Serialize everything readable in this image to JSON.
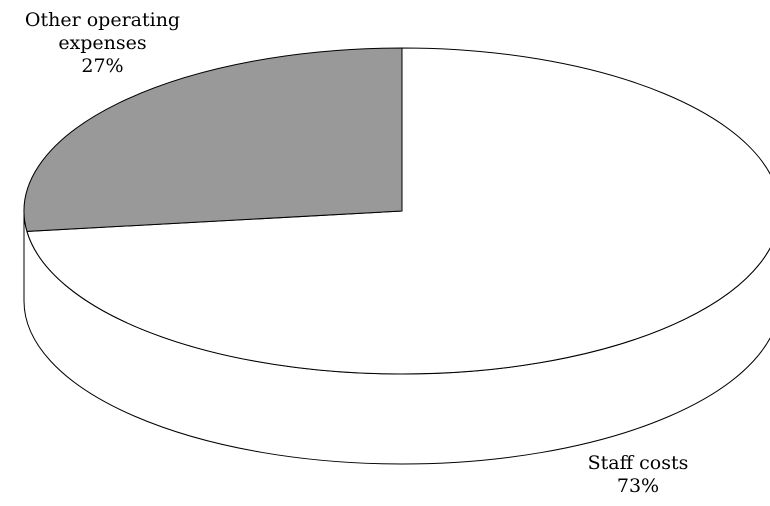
{
  "chart_data": {
    "type": "pie",
    "style": "3d",
    "slices": [
      {
        "label": "Other operating expenses",
        "label_lines": [
          "Other operating",
          "expenses"
        ],
        "value": 27,
        "value_label": "27%",
        "color": "#999999"
      },
      {
        "label": "Staff costs",
        "label_lines": [
          "Staff costs"
        ],
        "value": 73,
        "value_label": "73%",
        "color": "#ffffff"
      }
    ],
    "title": "",
    "outline_color": "#000000"
  }
}
